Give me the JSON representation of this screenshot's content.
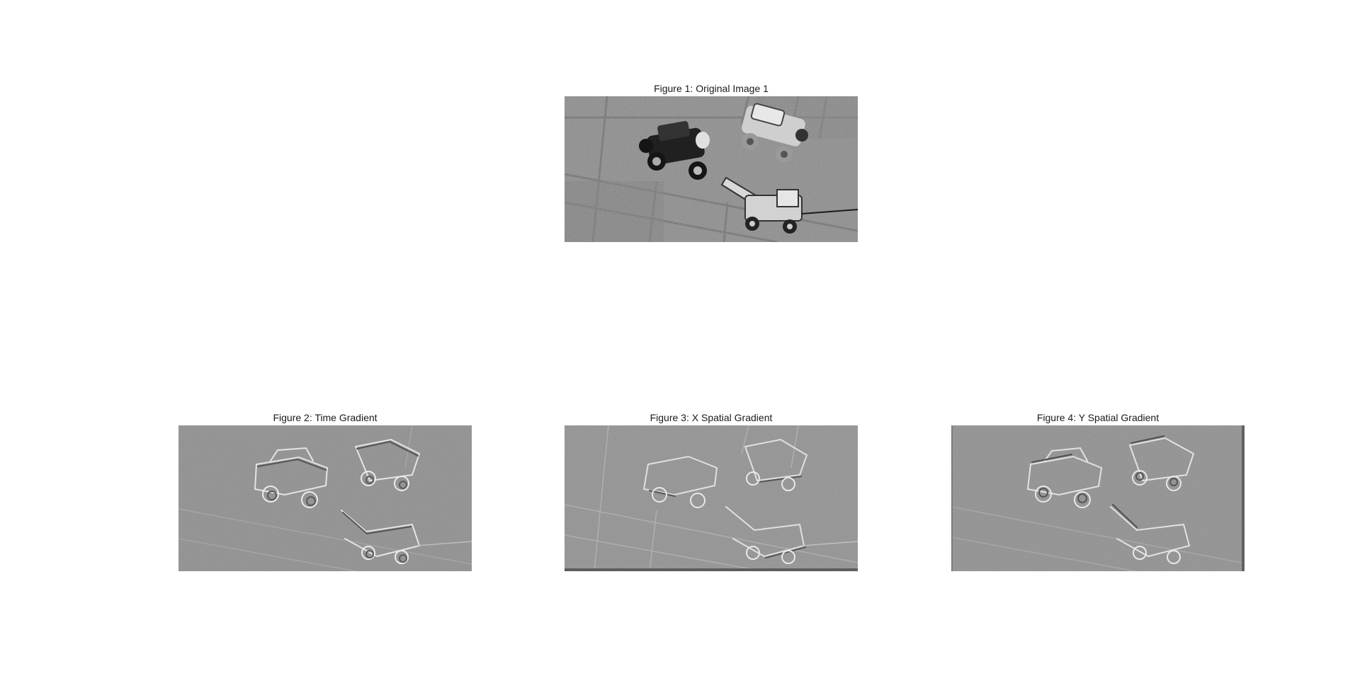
{
  "figures": [
    {
      "title": "Figure 1: Original Image 1",
      "image": "grayscale photo of three toy trucks on paved ground",
      "style": "original"
    },
    {
      "title": "Figure 2: Time Gradient",
      "image": "embossed gray gradient map of toy trucks",
      "style": "gradient"
    },
    {
      "title": "Figure 3: X Spatial Gradient",
      "image": "embossed gray gradient map of toy trucks",
      "style": "gradient"
    },
    {
      "title": "Figure 4: Y Spatial Gradient",
      "image": "embossed gray gradient map of toy trucks",
      "style": "gradient"
    }
  ]
}
